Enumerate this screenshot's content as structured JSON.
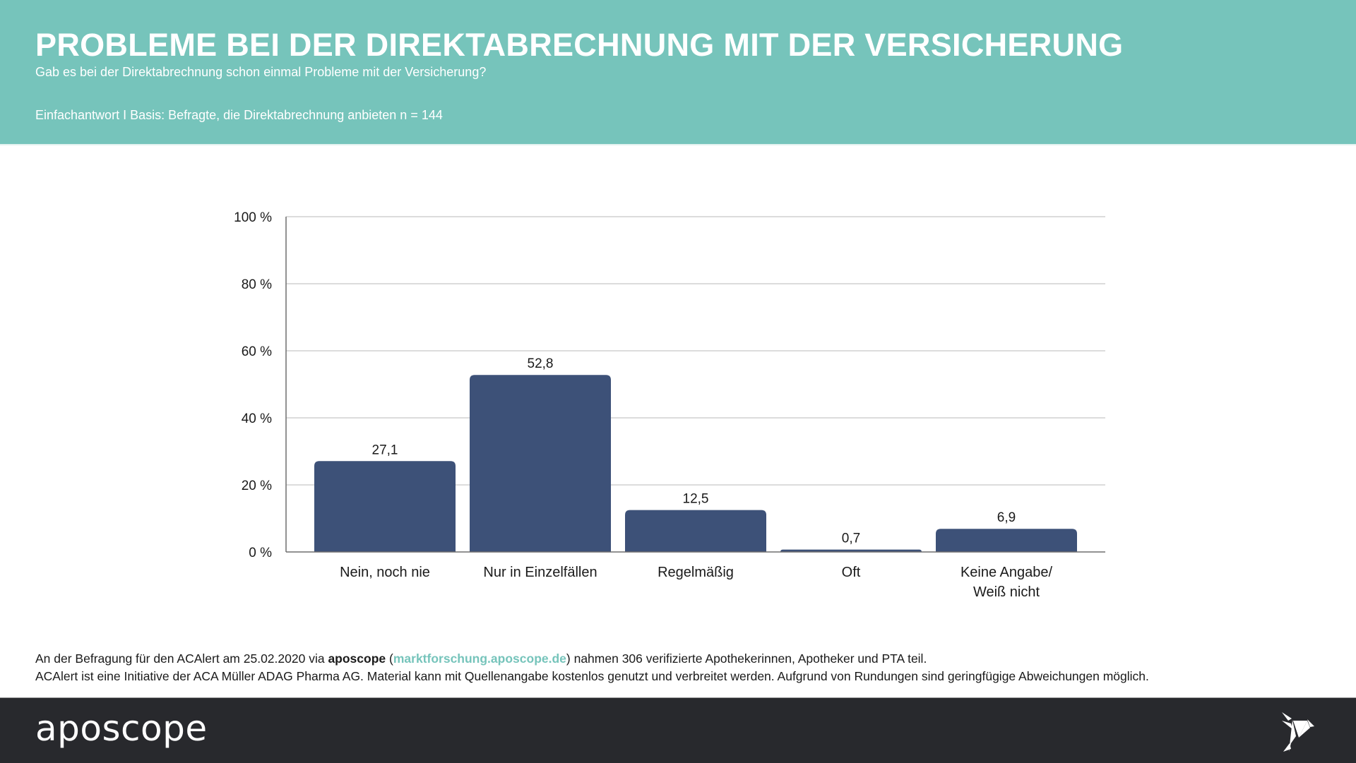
{
  "header": {
    "title": "PROBLEME BEI DER DIREKTABRECHNUNG MIT DER VERSICHERUNG",
    "subtitle": "Gab es bei der Direktabrechnung schon einmal Probleme mit der Versicherung?",
    "basis": "Einfachantwort I Basis: Befragte, die Direktabrechnung anbieten n = 144"
  },
  "colors": {
    "header_bg": "#76c4bb",
    "bar": "#3d5178",
    "footer_bg": "#28292d",
    "link": "#76c4bb"
  },
  "chart_data": {
    "type": "bar",
    "title": "PROBLEME BEI DER DIREKTABRECHNUNG MIT DER VERSICHERUNG",
    "xlabel": "",
    "ylabel": "",
    "categories": [
      "Nein, noch nie",
      "Nur in Einzelfällen",
      "Regelmäßig",
      "Oft",
      "Keine Angabe/\nWeiß nicht"
    ],
    "values": [
      27.1,
      52.8,
      12.5,
      0.7,
      6.9
    ],
    "value_labels": [
      "27,1",
      "52,8",
      "12,5",
      "0,7",
      "6,9"
    ],
    "ylim": [
      0,
      100
    ],
    "yticks": [
      0,
      20,
      40,
      60,
      80,
      100
    ],
    "ytick_labels": [
      "0 %",
      "20 %",
      "40 %",
      "60 %",
      "80 %",
      "100 %"
    ],
    "grid": true,
    "legend": "none"
  },
  "notes": {
    "line1_pre": "An der Befragung für den ACAlert am 25.02.2020 via ",
    "line1_brand": "aposcope",
    "line1_open": " (",
    "line1_link": "marktforschung.aposcope.de",
    "line1_post": ") nahmen 306 verifizierte Apothekerinnen, Apotheker und PTA teil.",
    "line2": "ACAlert ist eine Initiative der ACA Müller ADAG Pharma AG. Material kann mit Quellenangabe kostenlos genutzt und verbreitet werden. Aufgrund von Rundungen sind geringfügige Abweichungen möglich."
  },
  "footer": {
    "logo_text": "aposcope",
    "bird_icon": "origami-bird-icon"
  }
}
